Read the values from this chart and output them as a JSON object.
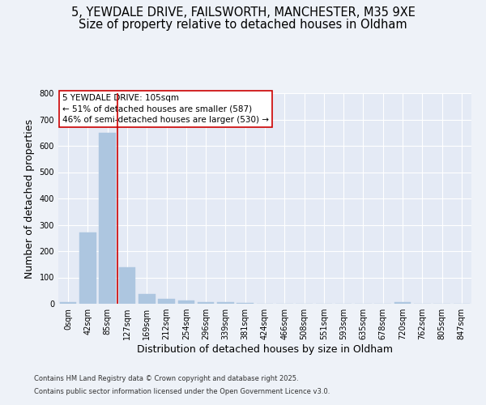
{
  "title_line1": "5, YEWDALE DRIVE, FAILSWORTH, MANCHESTER, M35 9XE",
  "title_line2": "Size of property relative to detached houses in Oldham",
  "xlabel": "Distribution of detached houses by size in Oldham",
  "ylabel": "Number of detached properties",
  "footnote1": "Contains HM Land Registry data © Crown copyright and database right 2025.",
  "footnote2": "Contains public sector information licensed under the Open Government Licence v3.0.",
  "bar_labels": [
    "0sqm",
    "42sqm",
    "85sqm",
    "127sqm",
    "169sqm",
    "212sqm",
    "254sqm",
    "296sqm",
    "339sqm",
    "381sqm",
    "424sqm",
    "466sqm",
    "508sqm",
    "551sqm",
    "593sqm",
    "635sqm",
    "678sqm",
    "720sqm",
    "762sqm",
    "805sqm",
    "847sqm"
  ],
  "bar_values": [
    5,
    270,
    650,
    140,
    38,
    18,
    11,
    7,
    5,
    3,
    0,
    0,
    0,
    0,
    0,
    0,
    0,
    5,
    0,
    0,
    0
  ],
  "bar_color": "#adc6e0",
  "bar_edgecolor": "#adc6e0",
  "redline_x": 2.5,
  "annotation_text": "5 YEWDALE DRIVE: 105sqm\n← 51% of detached houses are smaller (587)\n46% of semi-detached houses are larger (530) →",
  "ylim": [
    0,
    800
  ],
  "yticks": [
    0,
    100,
    200,
    300,
    400,
    500,
    600,
    700,
    800
  ],
  "background_color": "#eef2f8",
  "plot_bg_color": "#e4eaf5",
  "grid_color": "#ffffff",
  "redline_color": "#cc0000",
  "title_fontsize": 10.5,
  "axis_label_fontsize": 9,
  "tick_fontsize": 7,
  "annotation_fontsize": 7.5,
  "footnote_fontsize": 6
}
